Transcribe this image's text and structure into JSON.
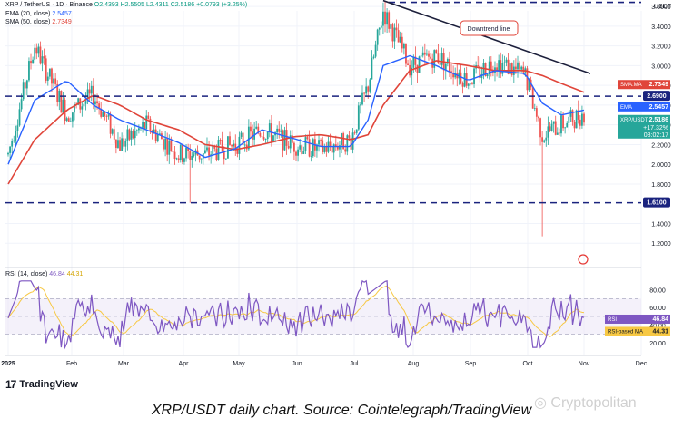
{
  "header": {
    "line1": "XRP / TetherUS · 1D · Binance",
    "ohlc": "O2.4393  H2.5505  L2.4311  C2.5186  +0.0793 (+3.25%)",
    "ema_label": "EMA (20, close)",
    "ema_value": "2.5457",
    "sma_label": "SMA (50, close)",
    "sma_value": "2.7349"
  },
  "currency": "USDT",
  "annotations": {
    "downtrend": "Downtrend line",
    "level_upper": "2.6900",
    "level_lower": "1.6100"
  },
  "price_tags": {
    "sma": {
      "label": "SMA:MA",
      "value": "2.7349",
      "color": "#e0453a"
    },
    "level": {
      "label": "",
      "value": "2.6900",
      "color": "#1a2a8c"
    },
    "ema": {
      "label": "EMA",
      "value": "2.5457",
      "color": "#2962ff"
    },
    "price": {
      "label": "XRP/USDT",
      "value": "2.5186",
      "change": "+17.32%",
      "timer": "08:02:17",
      "color": "#26a69a"
    }
  },
  "rsi": {
    "label": "RSI (14, close)",
    "value": "46.84",
    "ma_value": "44.31",
    "tag_rsi": "RSI",
    "tag_ma": "RSI-based MA"
  },
  "footer": {
    "brand": "TradingView",
    "caption": "XRP/USDT daily chart. Source: Cointelegraph/TradingView",
    "watermark": "Cryptopolitan"
  },
  "colors": {
    "up": "#26a69a",
    "down": "#ef5350",
    "ema": "#2962ff",
    "sma": "#e0453a",
    "level": "#1a237e",
    "rsi": "#7e57c2",
    "rsi_ma": "#f7c843"
  },
  "chart_data": {
    "type": "line",
    "title": "XRP / TetherUS · 1D · Binance",
    "ylim": [
      1.0,
      3.6
    ],
    "y_ticks": [
      "3.6000",
      "3.4000",
      "3.2000",
      "3.0000",
      "2.8000",
      "2.6000",
      "2.4000",
      "2.2000",
      "2.0000",
      "1.8000",
      "1.4000",
      "1.2000"
    ],
    "x_ticks": [
      "2025",
      "Feb",
      "Mar",
      "Apr",
      "May",
      "Jun",
      "Jul",
      "Aug",
      "Sep",
      "Oct",
      "Nov",
      "Dec"
    ],
    "rsi_ticks": [
      "80.00",
      "60.00",
      "40.00",
      "20.00"
    ],
    "horizontal_levels": [
      2.69,
      1.61
    ],
    "trendline": {
      "from": [
        "Jul 18",
        3.66
      ],
      "to": [
        "Nov 3",
        2.92
      ]
    },
    "series": [
      {
        "name": "XRP/USDT close",
        "x": [
          "Jan 1",
          "Jan 15",
          "Feb 1",
          "Feb 15",
          "Mar 1",
          "Mar 15",
          "Apr 1",
          "Apr 15",
          "May 1",
          "May 15",
          "Jun 1",
          "Jun 15",
          "Jul 1",
          "Jul 10",
          "Jul 18",
          "Aug 1",
          "Aug 15",
          "Sep 1",
          "Sep 15",
          "Oct 1",
          "Oct 10",
          "Oct 20",
          "Nov 1"
        ],
        "values": [
          2.1,
          3.2,
          2.5,
          2.7,
          2.2,
          2.4,
          2.1,
          2.1,
          2.2,
          2.35,
          2.2,
          2.15,
          2.25,
          2.8,
          3.55,
          3.0,
          3.1,
          2.85,
          3.05,
          2.9,
          2.3,
          2.4,
          2.52
        ]
      },
      {
        "name": "EMA (20, close)",
        "x": [
          "Jan 1",
          "Jan 15",
          "Feb 1",
          "Feb 15",
          "Mar 1",
          "Mar 15",
          "Apr 1",
          "Apr 15",
          "May 1",
          "May 15",
          "Jun 1",
          "Jun 15",
          "Jul 1",
          "Jul 10",
          "Jul 18",
          "Aug 1",
          "Aug 15",
          "Sep 1",
          "Sep 15",
          "Oct 1",
          "Oct 10",
          "Oct 20",
          "Nov 1"
        ],
        "values": [
          2.0,
          2.65,
          2.85,
          2.6,
          2.45,
          2.35,
          2.22,
          2.07,
          2.16,
          2.35,
          2.26,
          2.18,
          2.18,
          2.45,
          3.0,
          3.1,
          3.0,
          2.85,
          2.95,
          2.92,
          2.62,
          2.5,
          2.55
        ]
      },
      {
        "name": "SMA (50, close)",
        "x": [
          "Jan 1",
          "Jan 15",
          "Feb 1",
          "Feb 15",
          "Mar 1",
          "Mar 15",
          "Apr 1",
          "Apr 15",
          "May 1",
          "May 15",
          "Jun 1",
          "Jun 15",
          "Jul 1",
          "Jul 10",
          "Jul 18",
          "Aug 1",
          "Aug 15",
          "Sep 1",
          "Sep 15",
          "Oct 1",
          "Oct 10",
          "Oct 20",
          "Nov 1"
        ],
        "values": [
          1.8,
          2.25,
          2.55,
          2.7,
          2.6,
          2.45,
          2.35,
          2.2,
          2.15,
          2.2,
          2.28,
          2.3,
          2.25,
          2.3,
          2.6,
          2.95,
          3.05,
          3.0,
          2.95,
          2.95,
          2.9,
          2.82,
          2.73
        ]
      }
    ]
  }
}
